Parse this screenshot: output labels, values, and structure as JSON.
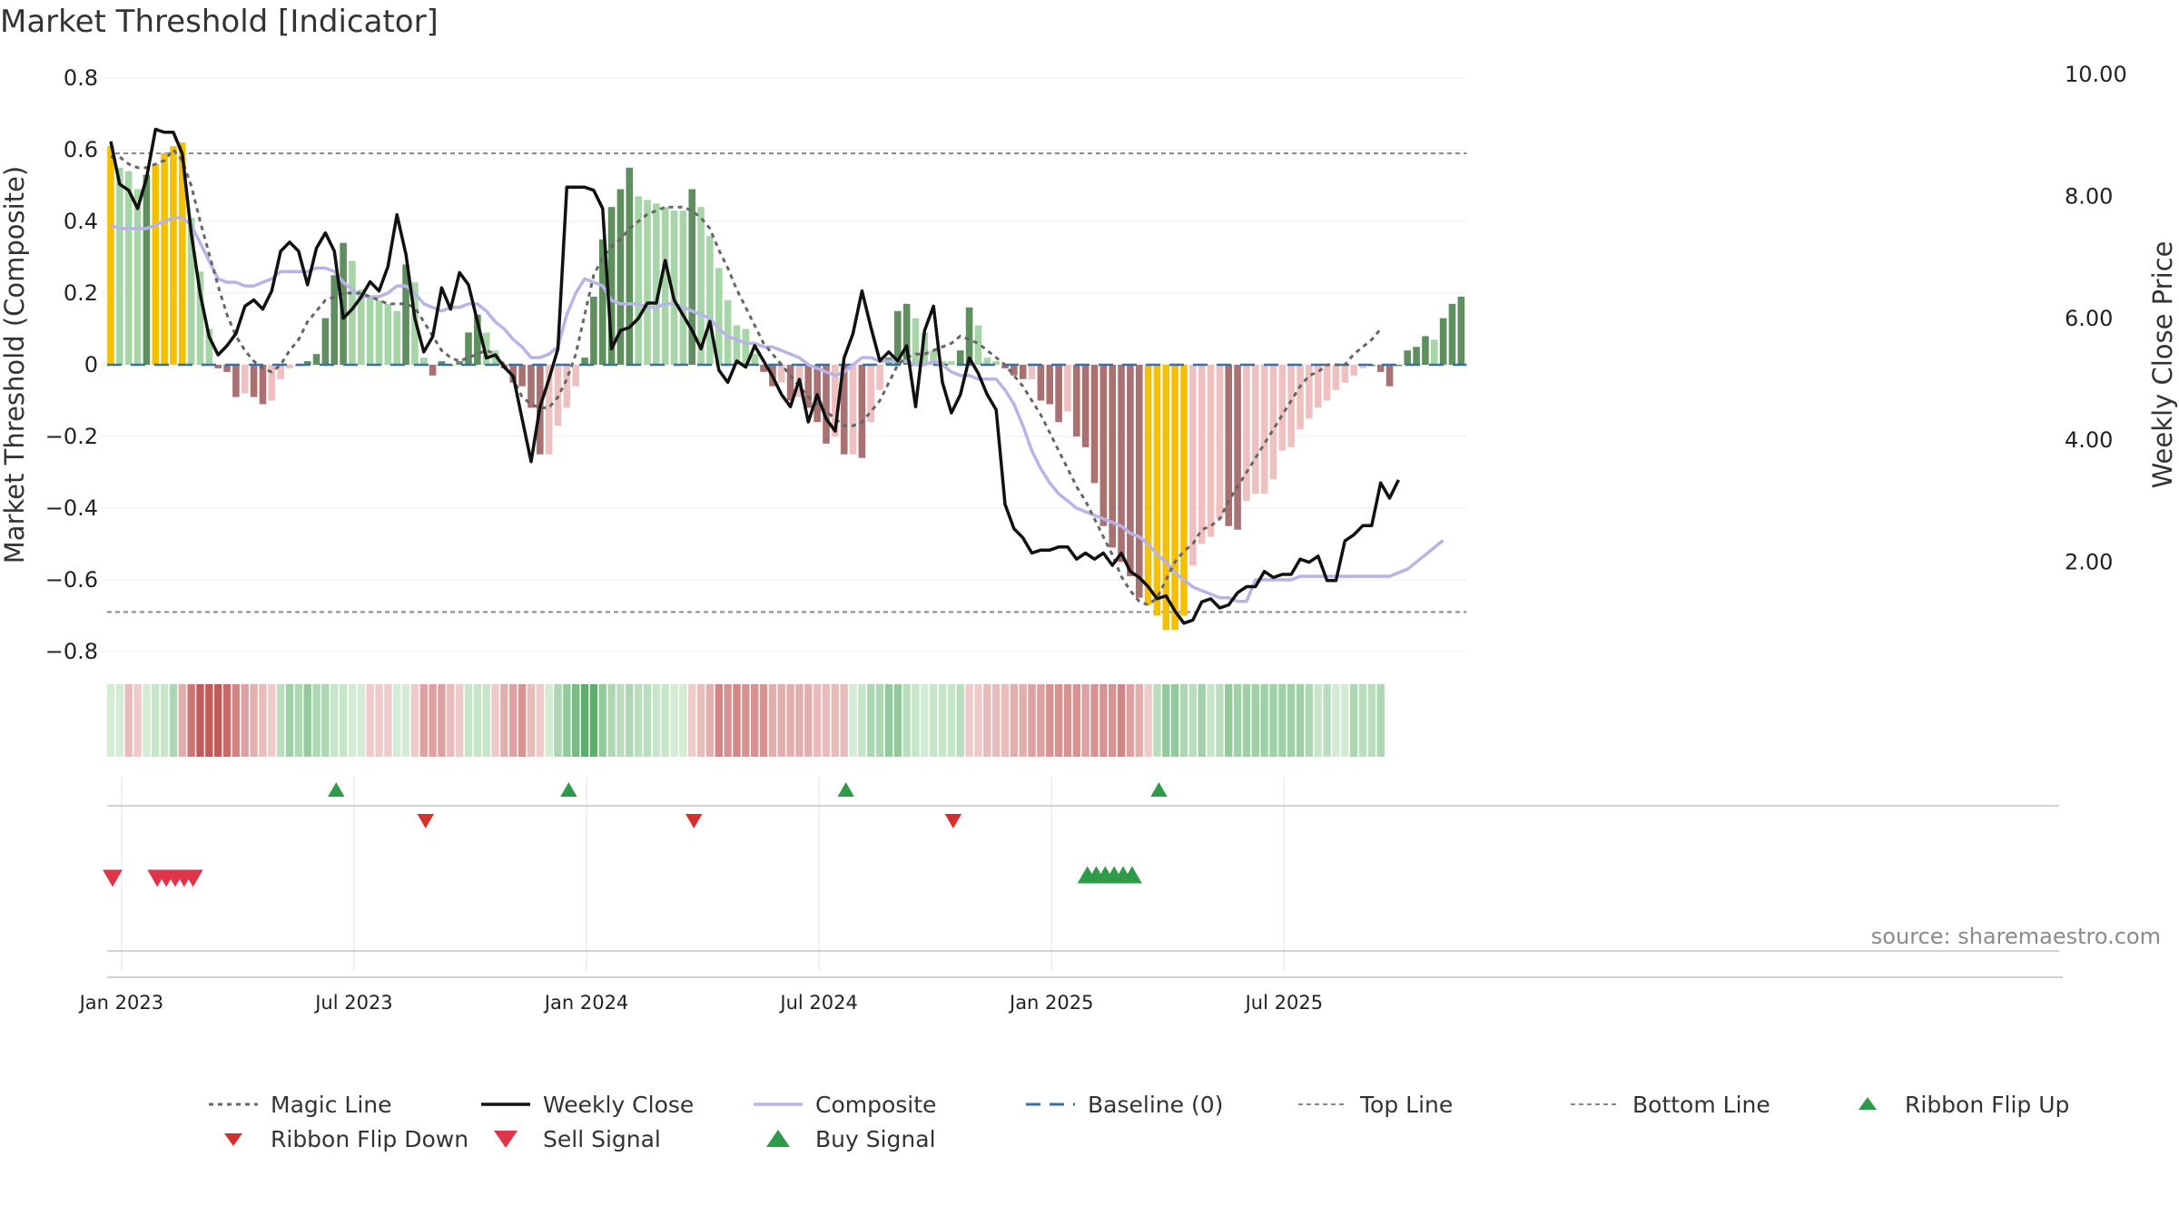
{
  "title": "Market Threshold [Indicator]",
  "source": "source: sharemaestro.com",
  "chart_data": {
    "type": "bar",
    "title": "Market Threshold [Indicator]",
    "ylabel": "Market Threshold (Composite)",
    "y2label": "Weekly Close Price",
    "ylim": [
      -0.8,
      0.8
    ],
    "y2lim": [
      0.0,
      10.0
    ],
    "yticks": [
      "0.8",
      "0.6",
      "0.4",
      "0.2",
      "0",
      "−0.2",
      "−0.4",
      "−0.6",
      "−0.8"
    ],
    "y2ticks": [
      "10.00",
      "8.00",
      "6.00",
      "4.00",
      "2.00"
    ],
    "xticks": [
      "Jan 2023",
      "Jul 2023",
      "Jan 2024",
      "Jul 2024",
      "Jan 2025",
      "Jul 2025"
    ],
    "x_start": "2022-12-26",
    "x_step": "1 week",
    "top_line": 0.59,
    "bottom_line": -0.69,
    "composite_bars": [
      0.61,
      0.55,
      0.54,
      0.49,
      0.53,
      0.56,
      0.59,
      0.61,
      0.62,
      0.41,
      0.26,
      0.1,
      -0.01,
      -0.02,
      -0.09,
      -0.08,
      -0.09,
      -0.11,
      -0.1,
      -0.04,
      -0.01,
      0.0,
      0.01,
      0.03,
      0.13,
      0.25,
      0.34,
      0.29,
      0.21,
      0.19,
      0.18,
      0.17,
      0.15,
      0.28,
      0.23,
      0.02,
      -0.03,
      0.01,
      0.0,
      0.01,
      0.09,
      0.14,
      0.09,
      0.04,
      -0.01,
      -0.05,
      -0.06,
      -0.12,
      -0.25,
      -0.25,
      -0.17,
      -0.12,
      -0.06,
      0.02,
      0.19,
      0.35,
      0.44,
      0.49,
      0.55,
      0.47,
      0.46,
      0.45,
      0.44,
      0.43,
      0.43,
      0.49,
      0.44,
      0.36,
      0.27,
      0.18,
      0.11,
      0.1,
      0.03,
      -0.02,
      -0.06,
      -0.05,
      -0.1,
      -0.09,
      -0.12,
      -0.16,
      -0.22,
      -0.2,
      -0.25,
      -0.25,
      -0.26,
      -0.16,
      -0.07,
      0.02,
      0.15,
      0.17,
      0.13,
      0.09,
      0.04,
      0.01,
      0.01,
      0.04,
      0.16,
      0.11,
      0.02,
      0.01,
      -0.01,
      -0.03,
      -0.04,
      -0.04,
      -0.1,
      -0.11,
      -0.16,
      -0.13,
      -0.2,
      -0.23,
      -0.33,
      -0.45,
      -0.51,
      -0.55,
      -0.59,
      -0.65,
      -0.67,
      -0.7,
      -0.74,
      -0.74,
      -0.7,
      -0.56,
      -0.5,
      -0.48,
      -0.43,
      -0.45,
      -0.46,
      -0.38,
      -0.36,
      -0.36,
      -0.32,
      -0.24,
      -0.23,
      -0.18,
      -0.15,
      -0.12,
      -0.1,
      -0.07,
      -0.05,
      -0.03,
      -0.01,
      0.0,
      -0.02,
      -0.06,
      0.0,
      0.04,
      0.05,
      0.08,
      0.07,
      0.13,
      0.17,
      0.19
    ],
    "weekly_close": [
      8.9,
      8.2,
      8.1,
      7.8,
      8.3,
      9.1,
      9.05,
      9.05,
      8.7,
      7.4,
      6.4,
      5.7,
      5.4,
      5.55,
      5.75,
      6.2,
      6.3,
      6.15,
      6.45,
      7.1,
      7.25,
      7.1,
      6.55,
      7.15,
      7.4,
      7.1,
      6.0,
      6.15,
      6.35,
      6.6,
      6.45,
      6.85,
      7.7,
      7.05,
      6.0,
      5.45,
      5.7,
      6.5,
      6.15,
      6.75,
      6.55,
      5.95,
      5.35,
      5.4,
      5.2,
      5.05,
      4.35,
      3.65,
      4.55,
      5.0,
      5.5,
      8.15,
      8.15,
      8.15,
      8.1,
      7.8,
      5.5,
      5.8,
      5.85,
      6.0,
      6.25,
      6.25,
      6.95,
      6.3,
      6.05,
      5.8,
      5.5,
      5.95,
      5.15,
      4.95,
      5.3,
      5.2,
      5.55,
      5.3,
      5.05,
      4.75,
      4.55,
      5.0,
      4.3,
      4.75,
      4.35,
      4.15,
      5.35,
      5.75,
      6.45,
      5.85,
      5.3,
      5.45,
      5.3,
      5.55,
      4.55,
      5.8,
      6.2,
      4.95,
      4.45,
      4.75,
      5.35,
      5.1,
      4.75,
      4.5,
      2.95,
      2.55,
      2.4,
      2.15,
      2.2,
      2.2,
      2.25,
      2.25,
      2.05,
      2.15,
      2.05,
      2.15,
      1.95,
      2.15,
      1.85,
      1.75,
      1.6,
      1.4,
      1.45,
      1.2,
      1.0,
      1.05,
      1.35,
      1.4,
      1.25,
      1.3,
      1.5,
      1.6,
      1.6,
      1.85,
      1.75,
      1.8,
      1.8,
      2.05,
      2.0,
      2.1,
      1.7,
      1.7,
      2.35,
      2.45,
      2.6,
      2.6,
      3.3,
      3.05,
      3.35
    ],
    "composite_line": [
      0.39,
      0.38,
      0.38,
      0.38,
      0.38,
      0.39,
      0.4,
      0.41,
      0.41,
      0.39,
      0.34,
      0.29,
      0.24,
      0.23,
      0.23,
      0.22,
      0.22,
      0.23,
      0.24,
      0.26,
      0.26,
      0.26,
      0.26,
      0.27,
      0.27,
      0.26,
      0.23,
      0.21,
      0.19,
      0.19,
      0.19,
      0.2,
      0.22,
      0.22,
      0.2,
      0.17,
      0.16,
      0.15,
      0.16,
      0.16,
      0.17,
      0.17,
      0.15,
      0.12,
      0.1,
      0.07,
      0.05,
      0.02,
      0.02,
      0.03,
      0.05,
      0.14,
      0.2,
      0.24,
      0.23,
      0.22,
      0.18,
      0.17,
      0.17,
      0.17,
      0.16,
      0.16,
      0.17,
      0.17,
      0.16,
      0.15,
      0.14,
      0.13,
      0.1,
      0.08,
      0.07,
      0.06,
      0.06,
      0.05,
      0.05,
      0.04,
      0.03,
      0.02,
      0.0,
      -0.01,
      -0.02,
      -0.03,
      -0.02,
      0.0,
      0.02,
      0.02,
      0.01,
      0.01,
      0.01,
      0.01,
      0.0,
      0.0,
      0.01,
      0.0,
      -0.02,
      -0.03,
      -0.03,
      -0.04,
      -0.04,
      -0.04,
      -0.07,
      -0.11,
      -0.17,
      -0.24,
      -0.29,
      -0.33,
      -0.36,
      -0.38,
      -0.4,
      -0.41,
      -0.42,
      -0.43,
      -0.44,
      -0.45,
      -0.47,
      -0.48,
      -0.5,
      -0.53,
      -0.55,
      -0.58,
      -0.6,
      -0.62,
      -0.63,
      -0.64,
      -0.65,
      -0.65,
      -0.66,
      -0.66,
      -0.6,
      -0.6,
      -0.6,
      -0.6,
      -0.6,
      -0.59,
      -0.59,
      -0.59,
      -0.59,
      -0.59,
      -0.59,
      -0.59,
      -0.59,
      -0.59,
      -0.59,
      -0.59,
      -0.58,
      -0.57,
      -0.55,
      -0.53,
      -0.51,
      -0.49
    ],
    "magic_line": [
      0.58,
      0.58,
      0.56,
      0.55,
      0.55,
      0.56,
      0.57,
      0.6,
      0.57,
      0.5,
      0.4,
      0.31,
      0.22,
      0.14,
      0.08,
      0.04,
      0.01,
      -0.01,
      -0.02,
      0.0,
      0.04,
      0.07,
      0.12,
      0.15,
      0.18,
      0.19,
      0.2,
      0.2,
      0.2,
      0.19,
      0.18,
      0.17,
      0.17,
      0.17,
      0.16,
      0.12,
      0.08,
      0.04,
      0.02,
      0.01,
      0.02,
      0.03,
      0.04,
      0.03,
      0.0,
      -0.04,
      -0.09,
      -0.11,
      -0.12,
      -0.12,
      -0.09,
      -0.04,
      0.03,
      0.14,
      0.25,
      0.3,
      0.33,
      0.35,
      0.38,
      0.4,
      0.42,
      0.43,
      0.44,
      0.44,
      0.44,
      0.43,
      0.41,
      0.38,
      0.32,
      0.27,
      0.21,
      0.16,
      0.11,
      0.06,
      0.03,
      0.0,
      -0.03,
      -0.06,
      -0.09,
      -0.11,
      -0.13,
      -0.15,
      -0.17,
      -0.17,
      -0.16,
      -0.13,
      -0.1,
      -0.05,
      0.0,
      0.02,
      0.03,
      0.03,
      0.04,
      0.05,
      0.06,
      0.08,
      0.07,
      0.06,
      0.04,
      0.02,
      0.0,
      -0.03,
      -0.06,
      -0.1,
      -0.14,
      -0.19,
      -0.24,
      -0.29,
      -0.34,
      -0.38,
      -0.43,
      -0.48,
      -0.53,
      -0.59,
      -0.63,
      -0.66,
      -0.67,
      -0.65,
      -0.6,
      -0.55,
      -0.52,
      -0.5,
      -0.46,
      -0.45,
      -0.43,
      -0.38,
      -0.34,
      -0.3,
      -0.26,
      -0.22,
      -0.18,
      -0.14,
      -0.1,
      -0.06,
      -0.03,
      -0.02,
      0.0,
      0.0,
      0.0,
      0.03,
      0.05,
      0.07,
      0.1
    ],
    "ribbon_flip_up_weeks": [
      25,
      51,
      82,
      117
    ],
    "ribbon_flip_down_weeks": [
      35,
      65,
      94
    ],
    "sell_signal_weeks": [
      0,
      5,
      6,
      7,
      8,
      9
    ],
    "buy_signal_weeks": [
      109,
      110,
      111,
      112,
      113,
      114
    ],
    "legend": [
      "Magic Line",
      "Weekly Close",
      "Composite",
      "Baseline (0)",
      "Top Line",
      "Bottom Line",
      "Ribbon Flip Up",
      "Ribbon Flip Down",
      "Sell Signal",
      "Buy Signal"
    ]
  },
  "colors": {
    "strong_pos": "#5f8f5f",
    "weak_pos": "#a8d5a8",
    "strong_neg": "#a97272",
    "weak_neg": "#eec0c0",
    "extreme": "#f5c000",
    "weekly_close": "#111111",
    "composite": "#b8b4e6",
    "magic": "#666666",
    "baseline": "#3a6ea5",
    "threshold": "#888888",
    "flip_up": "#2e9a4a",
    "flip_down": "#d3302f",
    "sell": "#e03548",
    "buy": "#2e9a4a"
  }
}
